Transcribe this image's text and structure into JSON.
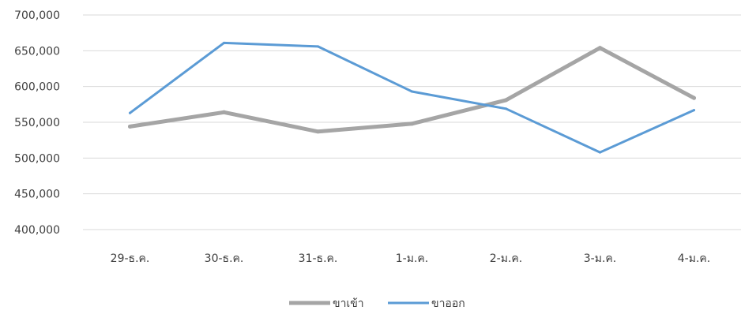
{
  "chart_data": {
    "type": "line",
    "categories": [
      "29-ธ.ค.",
      "30-ธ.ค.",
      "31-ธ.ค.",
      "1-ม.ค.",
      "2-ม.ค.",
      "3-ม.ค.",
      "4-ม.ค."
    ],
    "series": [
      {
        "name": "ขาเข้า",
        "color": "#A5A5A5",
        "values": [
          544000,
          564000,
          537000,
          548000,
          581000,
          654000,
          584000
        ]
      },
      {
        "name": "ขาออก",
        "color": "#5B9BD5",
        "values": [
          563000,
          661000,
          656000,
          593000,
          569000,
          508000,
          567000
        ]
      }
    ],
    "yticks": [
      "400,000",
      "450,000",
      "500,000",
      "550,000",
      "600,000",
      "650,000",
      "700,000"
    ],
    "ylim": [
      400000,
      700000
    ],
    "grid": true,
    "gridColor": "#D9D9D9",
    "legend_position": "bottom"
  }
}
